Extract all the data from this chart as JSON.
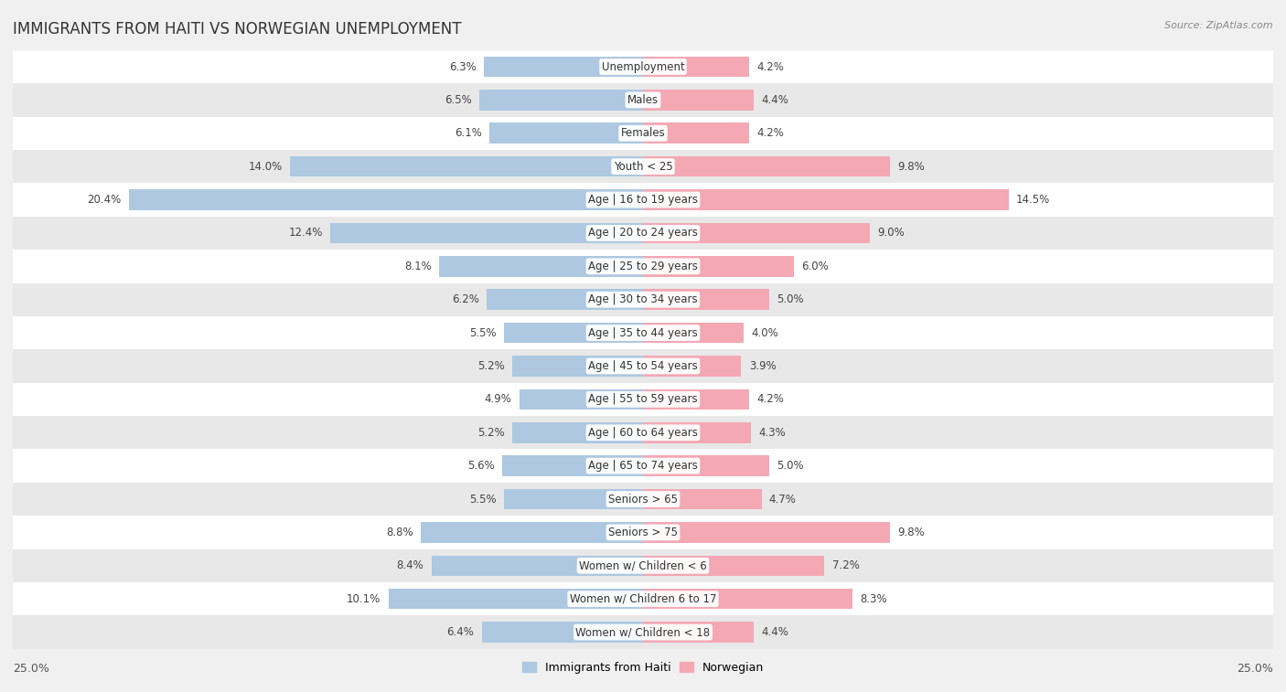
{
  "title": "IMMIGRANTS FROM HAITI VS NORWEGIAN UNEMPLOYMENT",
  "source": "Source: ZipAtlas.com",
  "categories": [
    "Unemployment",
    "Males",
    "Females",
    "Youth < 25",
    "Age | 16 to 19 years",
    "Age | 20 to 24 years",
    "Age | 25 to 29 years",
    "Age | 30 to 34 years",
    "Age | 35 to 44 years",
    "Age | 45 to 54 years",
    "Age | 55 to 59 years",
    "Age | 60 to 64 years",
    "Age | 65 to 74 years",
    "Seniors > 65",
    "Seniors > 75",
    "Women w/ Children < 6",
    "Women w/ Children 6 to 17",
    "Women w/ Children < 18"
  ],
  "haiti_values": [
    6.3,
    6.5,
    6.1,
    14.0,
    20.4,
    12.4,
    8.1,
    6.2,
    5.5,
    5.2,
    4.9,
    5.2,
    5.6,
    5.5,
    8.8,
    8.4,
    10.1,
    6.4
  ],
  "norwegian_values": [
    4.2,
    4.4,
    4.2,
    9.8,
    14.5,
    9.0,
    6.0,
    5.0,
    4.0,
    3.9,
    4.2,
    4.3,
    5.0,
    4.7,
    9.8,
    7.2,
    8.3,
    4.4
  ],
  "haiti_color": "#adc8e0",
  "norwegian_color": "#f4a8b4",
  "haiti_label": "Immigrants from Haiti",
  "norwegian_label": "Norwegian",
  "x_max": 25.0,
  "bg_color": "#f0f0f0",
  "row_color_even": "#ffffff",
  "row_color_odd": "#e8e8e8",
  "title_fontsize": 12,
  "label_fontsize": 8.5,
  "tick_fontsize": 9,
  "value_fontsize": 8.5
}
